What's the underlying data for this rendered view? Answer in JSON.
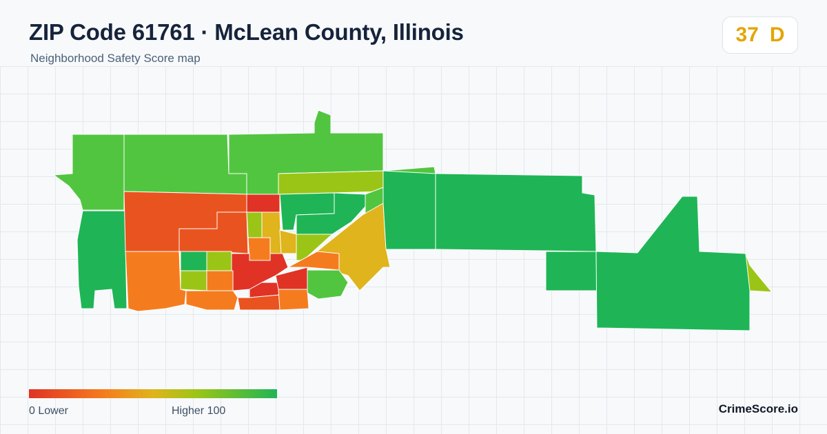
{
  "header": {
    "title": "ZIP Code 61761 · McLean County, Illinois",
    "subtitle": "Neighborhood Safety Score map"
  },
  "score": {
    "value": "37",
    "grade": "D",
    "color": "#e3a500"
  },
  "legend": {
    "min_label": "0  Lower",
    "max_label": "Higher  100",
    "scale_colors": [
      "#e03325",
      "#f57c1e",
      "#dfb41c",
      "#9bc516",
      "#1fb556"
    ]
  },
  "brand": "CrimeScore.io",
  "map": {
    "color_scale": {
      "red": "#e03325",
      "red_orange": "#e9531f",
      "orange": "#f57c1e",
      "gold": "#dfb41c",
      "yellow_green": "#9bc516",
      "light_green": "#52c540",
      "green": "#1fb556"
    }
  }
}
